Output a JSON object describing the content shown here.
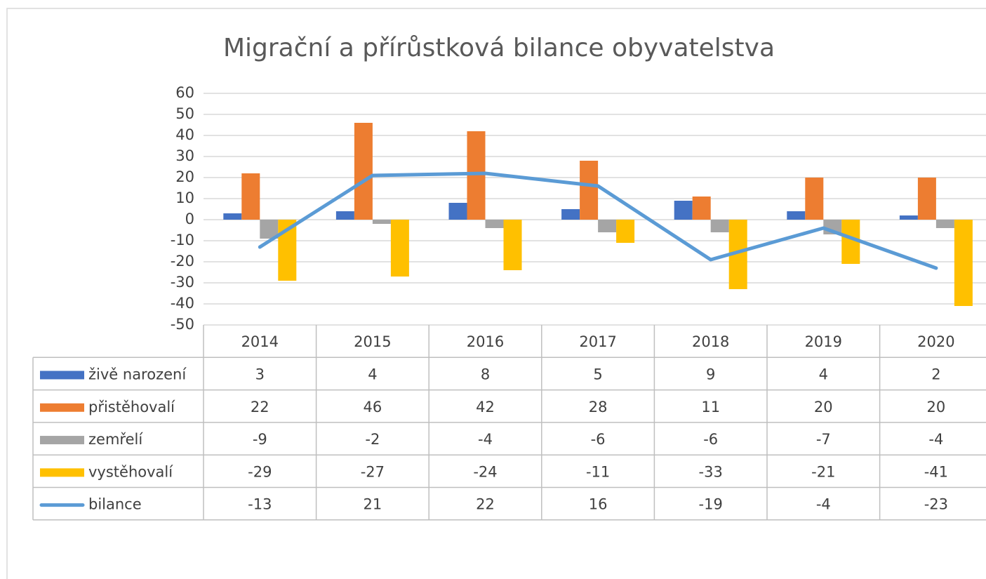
{
  "chart_data": {
    "type": "bar",
    "title": "Migrační a přírůstková bilance obyvatelstva",
    "categories": [
      "2014",
      "2015",
      "2016",
      "2017",
      "2018",
      "2019",
      "2020"
    ],
    "series": [
      {
        "name": "živě narození",
        "color": "#4472c4",
        "values": [
          3,
          4,
          8,
          5,
          9,
          4,
          2
        ]
      },
      {
        "name": "přistěhovalí",
        "color": "#ed7d31",
        "values": [
          22,
          46,
          42,
          28,
          11,
          20,
          20
        ]
      },
      {
        "name": "zemřelí",
        "color": "#a5a5a5",
        "values": [
          -9,
          -2,
          -4,
          -6,
          -6,
          -7,
          -4
        ]
      },
      {
        "name": "vystěhovalí",
        "color": "#ffc000",
        "values": [
          -29,
          -27,
          -24,
          -11,
          -33,
          -21,
          -41
        ]
      },
      {
        "name": "bilance",
        "color": "#5b9bd5",
        "type": "line",
        "values": [
          -13,
          21,
          22,
          16,
          -19,
          -4,
          -23
        ]
      }
    ],
    "ylim": [
      -50,
      60
    ],
    "yticks": [
      -50,
      -40,
      -30,
      -20,
      -10,
      0,
      10,
      20,
      30,
      40,
      50,
      60
    ],
    "grid": true
  }
}
